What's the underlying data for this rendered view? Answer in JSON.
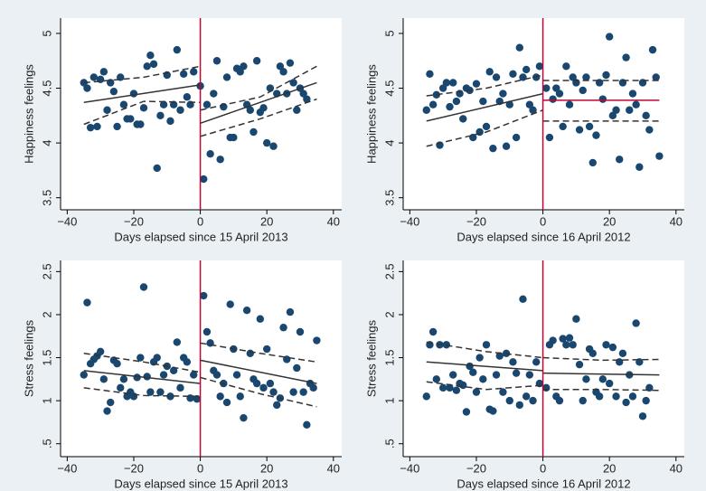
{
  "chart_data": [
    {
      "type": "scatter",
      "ylabel": "Happiness feelings",
      "xlabel": "Days elapsed since 15 April 2013",
      "xlim": [
        -42,
        42.5
      ],
      "ylim": [
        3.39,
        5.14
      ],
      "xticks": [
        {
          "value": -40,
          "label": "−40"
        },
        {
          "value": -20,
          "label": "−20"
        },
        0,
        20,
        40
      ],
      "yticks": [
        3.5,
        4,
        4.5,
        5
      ],
      "color": "#1a476f",
      "vline": {
        "x": 0,
        "color": "#c10534"
      },
      "points": {
        "x": [
          -35,
          -34,
          -33,
          -32,
          -31,
          -30,
          -29,
          -28,
          -27,
          -26,
          -25,
          -24,
          -23,
          -22,
          -21,
          -20,
          -19,
          -18,
          -17,
          -16,
          -15,
          -14,
          -13,
          -12,
          -11,
          -10,
          -9,
          -8,
          -7,
          -6,
          -5,
          -4,
          -3,
          -2,
          0,
          1,
          2,
          3,
          4,
          5,
          6,
          7,
          8,
          9,
          10,
          11,
          12,
          13,
          14,
          15,
          16,
          17,
          18,
          19,
          20,
          21,
          22,
          23,
          24,
          25,
          26,
          27,
          28,
          29,
          30,
          31,
          32
        ],
        "y": [
          4.55,
          4.5,
          4.14,
          4.6,
          4.15,
          4.58,
          4.65,
          4.3,
          4.55,
          4.47,
          4.15,
          4.6,
          4.35,
          4.22,
          4.22,
          4.45,
          4.17,
          4.17,
          4.32,
          4.7,
          4.8,
          4.72,
          3.77,
          4.25,
          4.35,
          4.62,
          4.2,
          4.35,
          4.85,
          4.3,
          4.63,
          4.42,
          4.35,
          4.65,
          4.52,
          3.67,
          4.35,
          3.9,
          4.45,
          4.75,
          3.85,
          4.33,
          4.6,
          4.05,
          4.05,
          4.68,
          4.65,
          4.7,
          4.35,
          4.3,
          4.1,
          4.75,
          4.28,
          4.32,
          4.0,
          4.5,
          3.97,
          4.45,
          4.7,
          4.65,
          4.45,
          4.73,
          4.55,
          4.3,
          4.5,
          4.45,
          4.4
        ]
      },
      "lines": [
        {
          "x": [
            -35,
            0
          ],
          "values": [
            4.37,
            4.53
          ],
          "color": "#333333",
          "dash": false
        },
        {
          "x": [
            -35,
            -17,
            0
          ],
          "values": [
            4.55,
            4.6,
            4.7
          ],
          "color": "#333333",
          "dash": true
        },
        {
          "x": [
            -35,
            -17,
            0
          ],
          "values": [
            4.17,
            4.38,
            4.37
          ],
          "color": "#333333",
          "dash": true
        },
        {
          "x": [
            0,
            35
          ],
          "values": [
            4.18,
            4.55
          ],
          "color": "#333333",
          "dash": false
        },
        {
          "x": [
            0,
            18,
            35
          ],
          "values": [
            4.3,
            4.42,
            4.7
          ],
          "color": "#333333",
          "dash": true
        },
        {
          "x": [
            0,
            18,
            35
          ],
          "values": [
            4.06,
            4.22,
            4.4
          ],
          "color": "#333333",
          "dash": true
        }
      ]
    },
    {
      "type": "scatter",
      "ylabel": "Happiness feelings",
      "xlabel": "Days elapsed since 16 April 2012",
      "xlim": [
        -42,
        42.5
      ],
      "ylim": [
        3.39,
        5.14
      ],
      "xticks": [
        {
          "value": -40,
          "label": "−40"
        },
        {
          "value": -20,
          "label": "−20"
        },
        0,
        20,
        40
      ],
      "yticks": [
        3.5,
        4,
        4.5,
        5
      ],
      "color": "#1a476f",
      "vline": {
        "x": 0,
        "color": "#c10534"
      },
      "points": {
        "x": [
          -35,
          -34,
          -33,
          -32,
          -31,
          -30,
          -29,
          -28,
          -27,
          -26,
          -25,
          -24,
          -23,
          -22,
          -21,
          -20,
          -19,
          -18,
          -17,
          -16,
          -15,
          -14,
          -13,
          -12,
          -11,
          -10,
          -9,
          -8,
          -7,
          -6,
          -5,
          -4,
          -3,
          -2,
          -1,
          1,
          2,
          3,
          4,
          5,
          6,
          7,
          8,
          9,
          10,
          11,
          12,
          13,
          14,
          15,
          16,
          17,
          18,
          19,
          20,
          21,
          22,
          23,
          24,
          25,
          26,
          27,
          28,
          29,
          30,
          31,
          32,
          33,
          34,
          35
        ],
        "y": [
          4.3,
          4.63,
          4.35,
          4.44,
          3.98,
          4.5,
          4.55,
          4.33,
          4.55,
          4.38,
          4.45,
          4.22,
          4.5,
          4.48,
          4.05,
          4.54,
          4.1,
          4.38,
          4.15,
          4.65,
          3.95,
          4.6,
          4.38,
          4.45,
          3.97,
          4.35,
          4.63,
          4.05,
          4.87,
          4.6,
          4.67,
          4.35,
          4.3,
          4.6,
          4.7,
          4.5,
          4.05,
          4.4,
          4.5,
          4.45,
          4.15,
          4.7,
          4.35,
          4.6,
          4.55,
          4.12,
          4.48,
          4.6,
          4.15,
          3.82,
          4.07,
          4.55,
          4.4,
          4.62,
          4.97,
          4.25,
          4.3,
          3.85,
          4.55,
          4.78,
          4.3,
          4.45,
          4.35,
          3.78,
          4.55,
          4.25,
          4.12,
          4.85,
          4.6,
          3.88
        ]
      },
      "lines": [
        {
          "x": [
            -35,
            0
          ],
          "values": [
            4.2,
            4.45
          ],
          "color": "#333333",
          "dash": false
        },
        {
          "x": [
            -35,
            -17,
            0
          ],
          "values": [
            4.43,
            4.5,
            4.62
          ],
          "color": "#333333",
          "dash": true
        },
        {
          "x": [
            -35,
            -17,
            0
          ],
          "values": [
            3.97,
            4.1,
            4.3
          ],
          "color": "#333333",
          "dash": true
        },
        {
          "x": [
            0,
            35
          ],
          "values": [
            4.39,
            4.39
          ],
          "color": "#c10534",
          "dash": false
        },
        {
          "x": [
            0,
            35
          ],
          "values": [
            4.57,
            4.57
          ],
          "color": "#333333",
          "dash": true
        },
        {
          "x": [
            0,
            35
          ],
          "values": [
            4.2,
            4.2
          ],
          "color": "#333333",
          "dash": true
        }
      ]
    },
    {
      "type": "scatter",
      "ylabel": "Stress  feelings",
      "xlabel": "Days elapsed since 15 April 2013",
      "xlim": [
        -42,
        42.5
      ],
      "ylim": [
        0.35,
        2.63
      ],
      "xticks": [
        {
          "value": -40,
          "label": "−40"
        },
        {
          "value": -20,
          "label": "−20"
        },
        0,
        20,
        40
      ],
      "yticks": [
        {
          "value": 0.5,
          "label": ".5"
        },
        1,
        1.5,
        2,
        2.5
      ],
      "color": "#1a476f",
      "vline": {
        "x": 0,
        "color": "#c10534"
      },
      "points": {
        "x": [
          -35,
          -34,
          -33,
          -32,
          -31,
          -30,
          -29,
          -28,
          -27,
          -26,
          -25,
          -24,
          -23,
          -22,
          -21,
          -20,
          -19,
          -18,
          -17,
          -16,
          -15,
          -14,
          -13,
          -12,
          -11,
          -10,
          -9,
          -8,
          -7,
          -6,
          -5,
          -4,
          -3,
          -2,
          -1,
          1,
          2,
          3,
          4,
          5,
          6,
          7,
          8,
          9,
          10,
          11,
          12,
          13,
          14,
          15,
          16,
          17,
          18,
          19,
          20,
          21,
          22,
          23,
          24,
          25,
          26,
          27,
          28,
          29,
          30,
          31,
          32,
          33,
          34,
          35
        ],
        "y": [
          1.3,
          2.14,
          1.43,
          1.48,
          1.52,
          1.57,
          1.25,
          0.88,
          0.98,
          1.47,
          1.43,
          1.15,
          1.25,
          1.05,
          1.1,
          1.05,
          1.27,
          1.5,
          2.32,
          1.28,
          1.1,
          1.45,
          1.5,
          1.1,
          1.3,
          1.4,
          1.05,
          1.35,
          1.68,
          1.15,
          1.5,
          1.45,
          1.03,
          1.3,
          1.02,
          2.22,
          1.8,
          1.67,
          1.35,
          1.3,
          1.05,
          1.2,
          0.98,
          2.12,
          1.6,
          1.3,
          1.05,
          0.8,
          2.05,
          1.55,
          1.25,
          1.2,
          1.95,
          1.15,
          1.6,
          1.2,
          1.1,
          0.95,
          1.03,
          1.85,
          1.48,
          2.03,
          1.1,
          1.38,
          1.8,
          1.1,
          0.72,
          1.2,
          1.15,
          1.7
        ]
      },
      "lines": [
        {
          "x": [
            -35,
            0
          ],
          "values": [
            1.35,
            1.2
          ],
          "color": "#333333",
          "dash": false
        },
        {
          "x": [
            -35,
            -17,
            0
          ],
          "values": [
            1.55,
            1.45,
            1.33
          ],
          "color": "#333333",
          "dash": true
        },
        {
          "x": [
            -35,
            -17,
            0
          ],
          "values": [
            1.15,
            1.06,
            1.05
          ],
          "color": "#333333",
          "dash": true
        },
        {
          "x": [
            0,
            35
          ],
          "values": [
            1.47,
            1.2
          ],
          "color": "#333333",
          "dash": false
        },
        {
          "x": [
            0,
            18,
            35
          ],
          "values": [
            1.67,
            1.55,
            1.45
          ],
          "color": "#333333",
          "dash": true
        },
        {
          "x": [
            0,
            18,
            35
          ],
          "values": [
            1.27,
            1.08,
            0.93
          ],
          "color": "#333333",
          "dash": true
        }
      ]
    },
    {
      "type": "scatter",
      "ylabel": "Stress  feelings",
      "xlabel": "Days elapsed since 16 April 2012",
      "xlim": [
        -42,
        42.5
      ],
      "ylim": [
        0.35,
        2.63
      ],
      "xticks": [
        {
          "value": -40,
          "label": "−40"
        },
        {
          "value": -20,
          "label": "−20"
        },
        0,
        20,
        40
      ],
      "yticks": [
        {
          "value": 0.5,
          "label": ".5"
        },
        1,
        1.5,
        2,
        2.5
      ],
      "color": "#1a476f",
      "vline": {
        "x": 0,
        "color": "#c10534"
      },
      "points": {
        "x": [
          -35,
          -34,
          -33,
          -32,
          -31,
          -30,
          -29,
          -28,
          -27,
          -26,
          -25,
          -24,
          -23,
          -22,
          -21,
          -20,
          -19,
          -18,
          -17,
          -16,
          -15,
          -14,
          -13,
          -12,
          -11,
          -10,
          -9,
          -8,
          -7,
          -6,
          -5,
          -4,
          -3,
          -2,
          -1,
          1,
          2,
          3,
          4,
          5,
          6,
          7,
          8,
          9,
          10,
          11,
          12,
          13,
          14,
          15,
          16,
          17,
          18,
          19,
          20,
          21,
          22,
          23,
          24,
          25,
          26,
          27,
          28,
          29,
          30,
          31,
          32
        ],
        "y": [
          1.05,
          1.65,
          1.8,
          1.25,
          1.65,
          1.15,
          1.65,
          1.15,
          1.3,
          1.12,
          1.2,
          1.18,
          0.87,
          1.4,
          1.33,
          1.1,
          1.5,
          1.25,
          1.65,
          0.9,
          0.88,
          1.3,
          1.52,
          1.1,
          1.55,
          1.0,
          1.45,
          1.32,
          0.95,
          2.18,
          1.05,
          1.3,
          1.0,
          1.45,
          1.2,
          1.15,
          1.65,
          1.7,
          1.05,
          1.0,
          1.72,
          1.65,
          1.73,
          1.65,
          1.95,
          1.42,
          1.0,
          1.25,
          1.6,
          1.55,
          1.1,
          1.05,
          1.25,
          1.65,
          1.2,
          1.62,
          1.05,
          1.45,
          1.55,
          0.98,
          1.3,
          1.05,
          1.9,
          1.45,
          0.82,
          1.0,
          1.15
        ]
      },
      "lines": [
        {
          "x": [
            -35,
            0
          ],
          "values": [
            1.45,
            1.35
          ],
          "color": "#333333",
          "dash": false
        },
        {
          "x": [
            -35,
            -17,
            0
          ],
          "values": [
            1.68,
            1.57,
            1.5
          ],
          "color": "#333333",
          "dash": true
        },
        {
          "x": [
            -35,
            -17,
            0
          ],
          "values": [
            1.22,
            1.13,
            1.18
          ],
          "color": "#333333",
          "dash": true
        },
        {
          "x": [
            0,
            35
          ],
          "values": [
            1.32,
            1.3
          ],
          "color": "#333333",
          "dash": false
        },
        {
          "x": [
            0,
            18,
            35
          ],
          "values": [
            1.5,
            1.47,
            1.48
          ],
          "color": "#333333",
          "dash": true
        },
        {
          "x": [
            0,
            18,
            35
          ],
          "values": [
            1.13,
            1.13,
            1.12
          ],
          "color": "#333333",
          "dash": true
        }
      ]
    }
  ]
}
